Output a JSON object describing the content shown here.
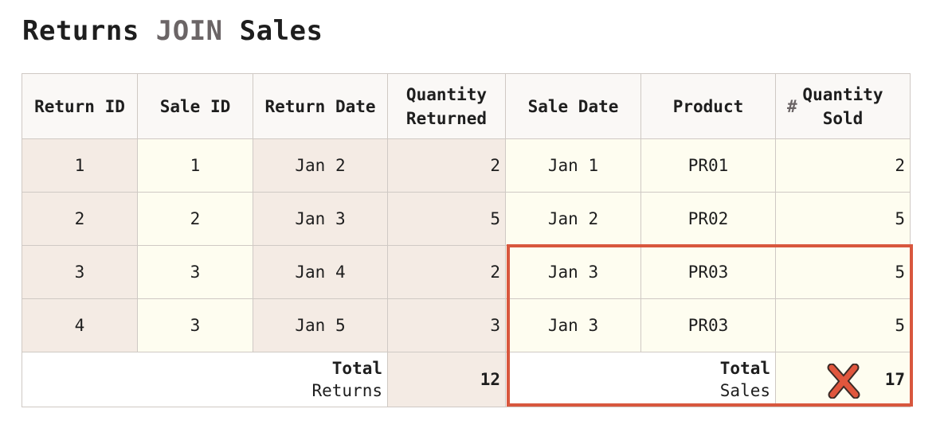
{
  "title": {
    "part1": "Returns ",
    "keyword": "JOIN",
    "part2": " Sales"
  },
  "headers": {
    "return_id": "Return ID",
    "sale_id": "Sale ID",
    "return_date": "Return Date",
    "quantity_returned": [
      "Quantity",
      "Returned"
    ],
    "sale_date": "Sale Date",
    "product": "Product",
    "quantity_sold_icon": "#",
    "quantity_sold": [
      "Quantity",
      "Sold"
    ]
  },
  "rows": [
    {
      "return_id": "1",
      "sale_id": "1",
      "return_date": "Jan 2",
      "quantity_returned": "2",
      "sale_date": "Jan 1",
      "product": "PR01",
      "quantity_sold": "2"
    },
    {
      "return_id": "2",
      "sale_id": "2",
      "return_date": "Jan 3",
      "quantity_returned": "5",
      "sale_date": "Jan 2",
      "product": "PR02",
      "quantity_sold": "5"
    },
    {
      "return_id": "3",
      "sale_id": "3",
      "return_date": "Jan 4",
      "quantity_returned": "2",
      "sale_date": "Jan 3",
      "product": "PR03",
      "quantity_sold": "5"
    },
    {
      "return_id": "4",
      "sale_id": "3",
      "return_date": "Jan 5",
      "quantity_returned": "3",
      "sale_date": "Jan 3",
      "product": "PR03",
      "quantity_sold": "5"
    }
  ],
  "totals": {
    "returns_label": [
      "Total",
      "Returns"
    ],
    "returns_value": "12",
    "sales_label": [
      "Total",
      "Sales"
    ],
    "sales_value": "17",
    "sales_mark_icon": "x-cross-icon"
  },
  "colors": {
    "returns_bg": "#f4ebe4",
    "sales_bg": "#fefdf0",
    "highlight": "#d8573e",
    "x_mark": "#e0563d"
  }
}
